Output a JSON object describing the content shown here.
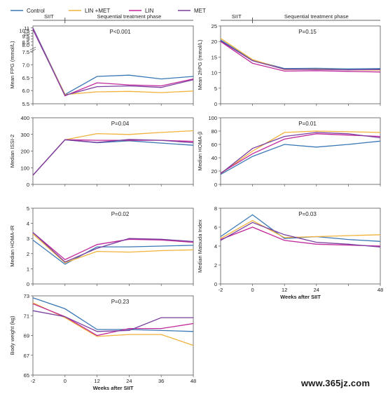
{
  "legend": [
    {
      "label": "Control",
      "color": "#3a78b5"
    },
    {
      "label": "LIN +MET",
      "color": "#f0b23a"
    },
    {
      "label": "LIN",
      "color": "#c0279a"
    },
    {
      "label": "MET",
      "color": "#7a3fa0"
    }
  ],
  "phases": {
    "siit": "SIIT",
    "sequential": "Sequential treatment phase"
  },
  "watermark": "www.365jz.com",
  "chart_data": [
    {
      "type": "line",
      "ylabel": "Mean FPG (mmol/L)",
      "annotation": "P<0.001",
      "x": [
        -2,
        0,
        12,
        24,
        36,
        48
      ],
      "xticks": [],
      "ylim_display": [
        5.5,
        11.0
      ],
      "yticks": [
        "5.5",
        "6.0",
        "6.5",
        "7.0",
        "7.5",
        "8.0",
        "8.5",
        "9",
        "9.5",
        "10",
        "10.5",
        "11"
      ],
      "series": [
        {
          "name": "Control",
          "values": [
            11.0,
            5.85,
            6.55,
            6.6,
            6.45,
            6.55
          ]
        },
        {
          "name": "LIN +MET",
          "values": [
            10.8,
            5.85,
            5.95,
            5.97,
            5.92,
            5.98
          ]
        },
        {
          "name": "LIN",
          "values": [
            10.9,
            5.8,
            6.3,
            6.22,
            6.18,
            6.45
          ]
        },
        {
          "name": "MET",
          "values": [
            10.7,
            5.82,
            6.15,
            6.18,
            6.12,
            6.42
          ]
        }
      ]
    },
    {
      "type": "line",
      "ylabel": "Mean 2hPG (mmol/L)",
      "annotation": "P=0.15",
      "x": [
        -2,
        0,
        12,
        24,
        36,
        48
      ],
      "xticks": [],
      "ylim": [
        0,
        25
      ],
      "yticks": [
        "0",
        "5",
        "10",
        "15",
        "20",
        "25"
      ],
      "series": [
        {
          "name": "Control",
          "values": [
            20.5,
            14.0,
            11.3,
            11.4,
            11.2,
            11.3
          ]
        },
        {
          "name": "LIN +MET",
          "values": [
            21.0,
            14.2,
            11.0,
            11.1,
            10.9,
            10.8
          ]
        },
        {
          "name": "LIN",
          "values": [
            20.0,
            13.0,
            10.5,
            10.6,
            10.4,
            10.2
          ]
        },
        {
          "name": "MET",
          "values": [
            20.2,
            13.8,
            11.1,
            11.0,
            10.9,
            11.0
          ]
        }
      ]
    },
    {
      "type": "line",
      "ylabel": "Median ISSI-2",
      "annotation": "P=0.04",
      "x": [
        -2,
        0,
        12,
        24,
        36,
        48
      ],
      "xticks": [],
      "ylim": [
        0,
        400
      ],
      "yticks": [
        "0",
        "100",
        "200",
        "300",
        "400"
      ],
      "series": [
        {
          "name": "Control",
          "values": [
            55,
            268,
            250,
            262,
            248,
            235
          ]
        },
        {
          "name": "LIN +MET",
          "values": [
            55,
            268,
            305,
            300,
            312,
            322
          ]
        },
        {
          "name": "LIN",
          "values": [
            55,
            268,
            265,
            265,
            265,
            258
          ]
        },
        {
          "name": "MET",
          "values": [
            55,
            268,
            252,
            270,
            265,
            250
          ]
        }
      ]
    },
    {
      "type": "line",
      "ylabel": "Median HOMA-β",
      "annotation": "P=0.01",
      "x": [
        -2,
        0,
        12,
        24,
        36,
        48
      ],
      "xticks": [],
      "ylim": [
        0,
        100
      ],
      "yticks": [
        "0",
        "20",
        "40",
        "60",
        "80",
        "100"
      ],
      "series": [
        {
          "name": "Control",
          "values": [
            15,
            42,
            60,
            56,
            60,
            65
          ]
        },
        {
          "name": "LIN +MET",
          "values": [
            16,
            50,
            78,
            80,
            79,
            78
          ]
        },
        {
          "name": "LIN",
          "values": [
            17,
            46,
            68,
            76,
            74,
            72
          ]
        },
        {
          "name": "MET",
          "values": [
            16,
            54,
            72,
            78,
            76,
            70
          ]
        }
      ]
    },
    {
      "type": "line",
      "ylabel": "Median HOMA-IR",
      "annotation": "P=0.02",
      "x": [
        -2,
        0,
        12,
        24,
        36,
        48
      ],
      "xticks": [],
      "ylim": [
        0,
        5
      ],
      "yticks": [
        "0",
        "1",
        "2",
        "3",
        "4",
        "5"
      ],
      "series": [
        {
          "name": "Control",
          "values": [
            2.9,
            1.3,
            2.45,
            2.45,
            2.5,
            2.55
          ]
        },
        {
          "name": "LIN +MET",
          "values": [
            3.3,
            1.4,
            2.15,
            2.1,
            2.2,
            2.25
          ]
        },
        {
          "name": "LIN",
          "values": [
            3.4,
            1.6,
            2.6,
            2.95,
            2.9,
            2.75
          ]
        },
        {
          "name": "MET",
          "values": [
            3.4,
            1.45,
            2.35,
            3.0,
            2.95,
            2.8
          ]
        }
      ]
    },
    {
      "type": "line",
      "ylabel": "Median Matsuda Index",
      "annotation": "P=0.03",
      "x": [
        -2,
        0,
        12,
        24,
        36,
        48
      ],
      "xticks": [
        "-2",
        "0",
        "12",
        "24",
        "48"
      ],
      "xlabel": "Weeks after SIIT",
      "ylim": [
        0,
        8
      ],
      "yticks": [
        "0",
        "2",
        "4",
        "6",
        "8"
      ],
      "series": [
        {
          "name": "Control",
          "values": [
            5.0,
            7.3,
            4.8,
            5.0,
            4.7,
            4.5
          ]
        },
        {
          "name": "LIN +MET",
          "values": [
            4.8,
            6.7,
            4.9,
            5.0,
            5.1,
            5.2
          ]
        },
        {
          "name": "LIN",
          "values": [
            4.7,
            6.0,
            4.6,
            4.2,
            4.1,
            4.0
          ]
        },
        {
          "name": "MET",
          "values": [
            4.6,
            6.5,
            5.2,
            4.4,
            4.2,
            3.9
          ]
        }
      ]
    },
    {
      "type": "line",
      "ylabel": "Body weight (kg)",
      "annotation": "P=0.23",
      "x": [
        -2,
        0,
        12,
        24,
        36,
        48
      ],
      "xticks": [
        "-2",
        "0",
        "12",
        "24",
        "36",
        "48"
      ],
      "xlabel": "Weeks after SIIT",
      "ylim": [
        65,
        73
      ],
      "yticks": [
        "65",
        "67",
        "69",
        "71",
        "73"
      ],
      "series": [
        {
          "name": "Control",
          "values": [
            72.8,
            71.7,
            69.6,
            69.6,
            69.5,
            69.4
          ]
        },
        {
          "name": "LIN +MET",
          "values": [
            72.3,
            70.8,
            68.9,
            69.1,
            69.1,
            68.0
          ]
        },
        {
          "name": "LIN",
          "values": [
            72.2,
            70.9,
            69.0,
            69.7,
            69.7,
            70.2
          ]
        },
        {
          "name": "MET",
          "values": [
            71.5,
            70.9,
            69.4,
            69.5,
            70.8,
            70.8
          ]
        }
      ]
    }
  ]
}
